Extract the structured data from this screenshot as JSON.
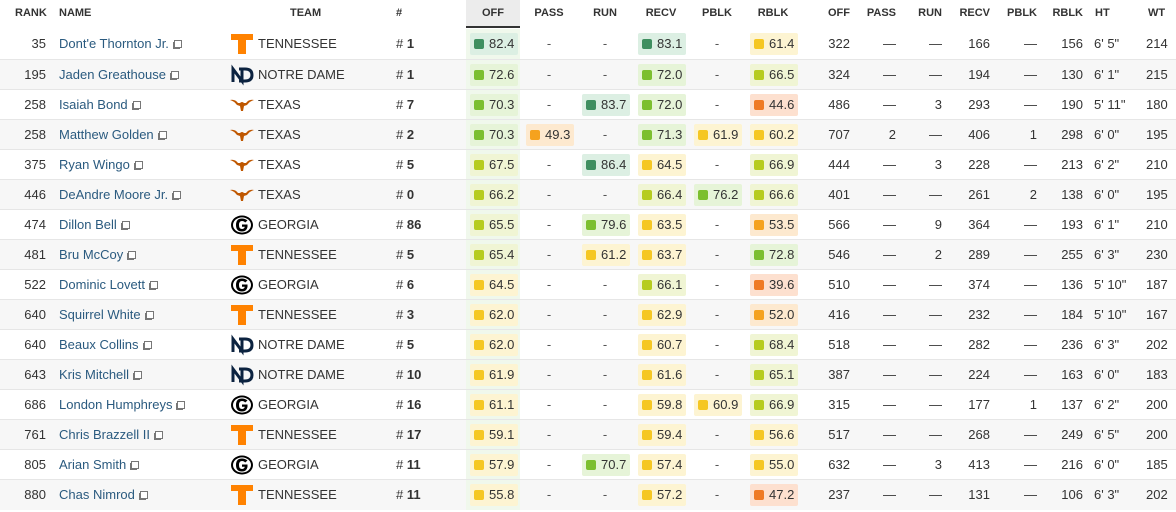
{
  "colors": {
    "dark_green": "#3f8f60",
    "green": "#7cbf2f",
    "yellow_green": "#b6cc1f",
    "yellow": "#f5c723",
    "orange": "#f5a21e",
    "red_orange": "#ef7a24",
    "tennessee_orange": "#ff8200",
    "texas_orange": "#bf5700",
    "notre_dame_navy": "#0c2340",
    "georgia_black": "#000000"
  },
  "headers": {
    "rank": "RANK",
    "name": "NAME",
    "team": "TEAM",
    "num": "#",
    "off": "OFF",
    "pass": "PASS",
    "run": "RUN",
    "recv": "RECV",
    "pblk": "PBLK",
    "rblk": "RBLK",
    "s_off": "OFF",
    "s_pass": "PASS",
    "s_run": "RUN",
    "s_recv": "RECV",
    "s_pblk": "PBLK",
    "s_rblk": "RBLK",
    "ht": "HT",
    "wt": "WT"
  },
  "rows": [
    {
      "rank": "35",
      "name": "Dont'e Thornton Jr.",
      "team": "TENNESSEE",
      "logo": "tennessee-logo",
      "num": "1",
      "off": "82.4",
      "pass": "-",
      "run": "-",
      "recv": "83.1",
      "pblk": "-",
      "rblk": "61.4",
      "s_off": "322",
      "s_pass": "—",
      "s_run": "—",
      "s_recv": "166",
      "s_pblk": "—",
      "s_rblk": "156",
      "ht": "6' 5\"",
      "wt": "214"
    },
    {
      "rank": "195",
      "name": "Jaden Greathouse",
      "team": "NOTRE DAME",
      "logo": "notre-dame-logo",
      "num": "1",
      "off": "72.6",
      "pass": "-",
      "run": "-",
      "recv": "72.0",
      "pblk": "-",
      "rblk": "66.5",
      "s_off": "324",
      "s_pass": "—",
      "s_run": "—",
      "s_recv": "194",
      "s_pblk": "—",
      "s_rblk": "130",
      "ht": "6' 1\"",
      "wt": "215"
    },
    {
      "rank": "258",
      "name": "Isaiah Bond",
      "team": "TEXAS",
      "logo": "texas-logo",
      "num": "7",
      "off": "70.3",
      "pass": "-",
      "run": "83.7",
      "recv": "72.0",
      "pblk": "-",
      "rblk": "44.6",
      "s_off": "486",
      "s_pass": "—",
      "s_run": "3",
      "s_recv": "293",
      "s_pblk": "—",
      "s_rblk": "190",
      "ht": "5' 11\"",
      "wt": "180"
    },
    {
      "rank": "258",
      "name": "Matthew Golden",
      "team": "TEXAS",
      "logo": "texas-logo",
      "num": "2",
      "off": "70.3",
      "pass": "49.3",
      "run": "-",
      "recv": "71.3",
      "pblk": "61.9",
      "rblk": "60.2",
      "s_off": "707",
      "s_pass": "2",
      "s_run": "—",
      "s_recv": "406",
      "s_pblk": "1",
      "s_rblk": "298",
      "ht": "6' 0\"",
      "wt": "195"
    },
    {
      "rank": "375",
      "name": "Ryan Wingo",
      "team": "TEXAS",
      "logo": "texas-logo",
      "num": "5",
      "off": "67.5",
      "pass": "-",
      "run": "86.4",
      "recv": "64.5",
      "pblk": "-",
      "rblk": "66.9",
      "s_off": "444",
      "s_pass": "—",
      "s_run": "3",
      "s_recv": "228",
      "s_pblk": "—",
      "s_rblk": "213",
      "ht": "6' 2\"",
      "wt": "210"
    },
    {
      "rank": "446",
      "name": "DeAndre Moore Jr.",
      "team": "TEXAS",
      "logo": "texas-logo",
      "num": "0",
      "off": "66.2",
      "pass": "-",
      "run": "-",
      "recv": "66.4",
      "pblk": "76.2",
      "rblk": "66.6",
      "s_off": "401",
      "s_pass": "—",
      "s_run": "—",
      "s_recv": "261",
      "s_pblk": "2",
      "s_rblk": "138",
      "ht": "6' 0\"",
      "wt": "195"
    },
    {
      "rank": "474",
      "name": "Dillon Bell",
      "team": "GEORGIA",
      "logo": "georgia-logo",
      "num": "86",
      "off": "65.5",
      "pass": "-",
      "run": "79.6",
      "recv": "63.5",
      "pblk": "-",
      "rblk": "53.5",
      "s_off": "566",
      "s_pass": "—",
      "s_run": "9",
      "s_recv": "364",
      "s_pblk": "—",
      "s_rblk": "193",
      "ht": "6' 1\"",
      "wt": "210"
    },
    {
      "rank": "481",
      "name": "Bru McCoy",
      "team": "TENNESSEE",
      "logo": "tennessee-logo",
      "num": "5",
      "off": "65.4",
      "pass": "-",
      "run": "61.2",
      "recv": "63.7",
      "pblk": "-",
      "rblk": "72.8",
      "s_off": "546",
      "s_pass": "—",
      "s_run": "2",
      "s_recv": "289",
      "s_pblk": "—",
      "s_rblk": "255",
      "ht": "6' 3\"",
      "wt": "230"
    },
    {
      "rank": "522",
      "name": "Dominic Lovett",
      "team": "GEORGIA",
      "logo": "georgia-logo",
      "num": "6",
      "off": "64.5",
      "pass": "-",
      "run": "-",
      "recv": "66.1",
      "pblk": "-",
      "rblk": "39.6",
      "s_off": "510",
      "s_pass": "—",
      "s_run": "—",
      "s_recv": "374",
      "s_pblk": "—",
      "s_rblk": "136",
      "ht": "5' 10\"",
      "wt": "187"
    },
    {
      "rank": "640",
      "name": "Squirrel White",
      "team": "TENNESSEE",
      "logo": "tennessee-logo",
      "num": "3",
      "off": "62.0",
      "pass": "-",
      "run": "-",
      "recv": "62.9",
      "pblk": "-",
      "rblk": "52.0",
      "s_off": "416",
      "s_pass": "—",
      "s_run": "—",
      "s_recv": "232",
      "s_pblk": "—",
      "s_rblk": "184",
      "ht": "5' 10\"",
      "wt": "167"
    },
    {
      "rank": "640",
      "name": "Beaux Collins",
      "team": "NOTRE DAME",
      "logo": "notre-dame-logo",
      "num": "5",
      "off": "62.0",
      "pass": "-",
      "run": "-",
      "recv": "60.7",
      "pblk": "-",
      "rblk": "68.4",
      "s_off": "518",
      "s_pass": "—",
      "s_run": "—",
      "s_recv": "282",
      "s_pblk": "—",
      "s_rblk": "236",
      "ht": "6' 3\"",
      "wt": "202"
    },
    {
      "rank": "643",
      "name": "Kris Mitchell",
      "team": "NOTRE DAME",
      "logo": "notre-dame-logo",
      "num": "10",
      "off": "61.9",
      "pass": "-",
      "run": "-",
      "recv": "61.6",
      "pblk": "-",
      "rblk": "65.1",
      "s_off": "387",
      "s_pass": "—",
      "s_run": "—",
      "s_recv": "224",
      "s_pblk": "—",
      "s_rblk": "163",
      "ht": "6' 0\"",
      "wt": "183"
    },
    {
      "rank": "686",
      "name": "London Humphreys",
      "team": "GEORGIA",
      "logo": "georgia-logo",
      "num": "16",
      "off": "61.1",
      "pass": "-",
      "run": "-",
      "recv": "59.8",
      "pblk": "60.9",
      "rblk": "66.9",
      "s_off": "315",
      "s_pass": "—",
      "s_run": "—",
      "s_recv": "177",
      "s_pblk": "1",
      "s_rblk": "137",
      "ht": "6' 2\"",
      "wt": "200"
    },
    {
      "rank": "761",
      "name": "Chris Brazzell II",
      "team": "TENNESSEE",
      "logo": "tennessee-logo",
      "num": "17",
      "off": "59.1",
      "pass": "-",
      "run": "-",
      "recv": "59.4",
      "pblk": "-",
      "rblk": "56.6",
      "s_off": "517",
      "s_pass": "—",
      "s_run": "—",
      "s_recv": "268",
      "s_pblk": "—",
      "s_rblk": "249",
      "ht": "6' 5\"",
      "wt": "200"
    },
    {
      "rank": "805",
      "name": "Arian Smith",
      "team": "GEORGIA",
      "logo": "georgia-logo",
      "num": "11",
      "off": "57.9",
      "pass": "-",
      "run": "70.7",
      "recv": "57.4",
      "pblk": "-",
      "rblk": "55.0",
      "s_off": "632",
      "s_pass": "—",
      "s_run": "3",
      "s_recv": "413",
      "s_pblk": "—",
      "s_rblk": "216",
      "ht": "6' 0\"",
      "wt": "185"
    },
    {
      "rank": "880",
      "name": "Chas Nimrod",
      "team": "TENNESSEE",
      "logo": "tennessee-logo",
      "num": "11",
      "off": "55.8",
      "pass": "-",
      "run": "-",
      "recv": "57.2",
      "pblk": "-",
      "rblk": "47.2",
      "s_off": "237",
      "s_pass": "—",
      "s_run": "—",
      "s_recv": "131",
      "s_pblk": "—",
      "s_rblk": "106",
      "ht": "6' 3\"",
      "wt": "202"
    }
  ]
}
